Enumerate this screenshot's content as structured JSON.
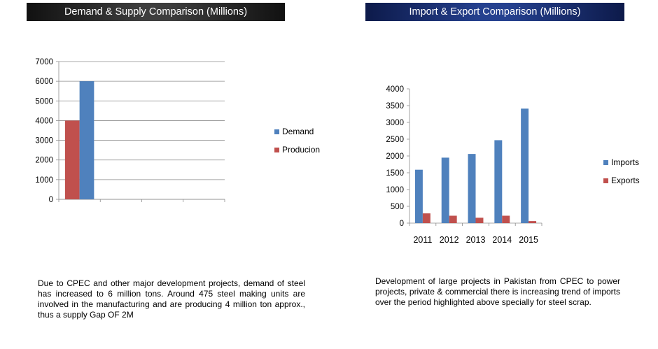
{
  "banners": {
    "left": "Demand & Supply Comparison (Millions)",
    "right": "Import & Export Comparison (Millions)"
  },
  "captions": {
    "left": "Due to CPEC and other major development projects, demand of steel has increased to 6 million tons. Around 475 steel making units are involved in the manufacturing and are producing  4 million ton approx., thus a supply Gap OF 2M",
    "right": "Development of large projects in Pakistan from CPEC to power projects, private & commercial there is increasing trend of imports over the period highlighted above specially for steel scrap."
  },
  "colors": {
    "blue": "#4f81bd",
    "red": "#c0504d",
    "grid": "#8c8c8c",
    "axis": "#8c8c8c"
  },
  "chart_data": [
    {
      "type": "bar",
      "title": "Demand & Supply Comparison (Millions)",
      "categories": [
        "",
        "",
        "",
        ""
      ],
      "series": [
        {
          "name": "Demand",
          "values": [
            6000,
            null,
            null,
            null
          ],
          "color": "#4f81bd"
        },
        {
          "name": "Producion",
          "values": [
            4000,
            null,
            null,
            null
          ],
          "color": "#c0504d"
        }
      ],
      "bar_order": [
        "Producion",
        "Demand"
      ],
      "ylim": [
        0,
        7000
      ],
      "yticks": [
        0,
        1000,
        2000,
        3000,
        4000,
        5000,
        6000,
        7000
      ],
      "grid": true,
      "legend": "right"
    },
    {
      "type": "bar",
      "title": "Import & Export Comparison (Millions)",
      "categories": [
        "2011",
        "2012",
        "2013",
        "2014",
        "2015"
      ],
      "series": [
        {
          "name": "Imports",
          "values": [
            1590,
            1950,
            2060,
            2470,
            3410
          ],
          "color": "#4f81bd"
        },
        {
          "name": "Exports",
          "values": [
            290,
            220,
            160,
            220,
            60
          ],
          "color": "#c0504d"
        }
      ],
      "bar_order": [
        "Imports",
        "Exports"
      ],
      "ylim": [
        0,
        4000
      ],
      "yticks": [
        0,
        500,
        1000,
        1500,
        2000,
        2500,
        3000,
        3500,
        4000
      ],
      "grid": false,
      "legend": "right"
    }
  ]
}
